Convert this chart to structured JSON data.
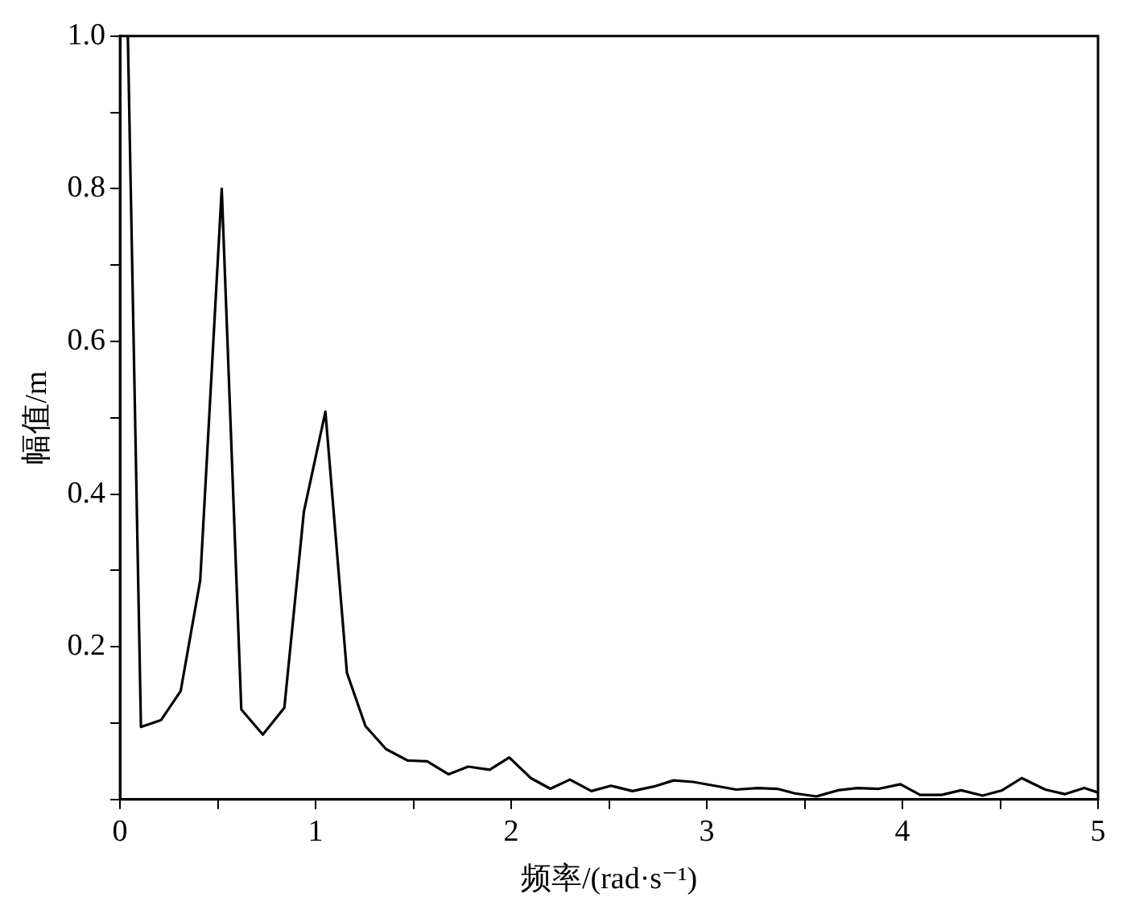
{
  "chart_data": {
    "type": "line",
    "xlabel": "频率/(rad·s⁻¹)",
    "ylabel": "幅值/m",
    "x": [
      0.04,
      0.107,
      0.21,
      0.31,
      0.41,
      0.52,
      0.62,
      0.73,
      0.84,
      0.94,
      1.05,
      1.16,
      1.255,
      1.36,
      1.47,
      1.57,
      1.68,
      1.78,
      1.89,
      1.99,
      2.1,
      2.2,
      2.3,
      2.41,
      2.51,
      2.62,
      2.73,
      2.83,
      2.93,
      3.04,
      3.15,
      3.26,
      3.36,
      3.45,
      3.56,
      3.67,
      3.77,
      3.88,
      3.99,
      4.09,
      4.2,
      4.3,
      4.41,
      4.51,
      4.61,
      4.73,
      4.83,
      4.93,
      5.0
    ],
    "series": [
      {
        "color": "#000000",
        "values": [
          1.0,
          0.095,
          0.104,
          0.142,
          0.287,
          0.8,
          0.118,
          0.085,
          0.12,
          0.377,
          0.508,
          0.166,
          0.096,
          0.066,
          0.051,
          0.05,
          0.033,
          0.043,
          0.039,
          0.055,
          0.028,
          0.014,
          0.026,
          0.011,
          0.018,
          0.011,
          0.017,
          0.025,
          0.023,
          0.018,
          0.013,
          0.015,
          0.014,
          0.008,
          0.004,
          0.012,
          0.015,
          0.014,
          0.02,
          0.006,
          0.006,
          0.012,
          0.005,
          0.012,
          0.028,
          0.013,
          0.007,
          0.015,
          0.009
        ]
      }
    ],
    "xlim": [
      0,
      5
    ],
    "xticks": [
      0,
      {
        "value": 0.5,
        "label": null
      },
      1,
      {
        "value": 1.5,
        "label": null
      },
      2,
      {
        "value": 2.5,
        "label": null
      },
      3,
      {
        "value": 3.5,
        "label": null
      },
      4,
      {
        "value": 4.5,
        "label": null
      },
      5
    ],
    "ylim": [
      0,
      1
    ],
    "yticks": [
      {
        "value": 0,
        "label": null
      },
      {
        "value": 0.1,
        "label": null
      },
      0.2,
      {
        "value": 0.3,
        "label": null
      },
      0.4,
      {
        "value": 0.5,
        "label": null
      },
      0.6,
      {
        "value": 0.7,
        "label": null
      },
      0.8,
      {
        "value": 0.9,
        "label": null
      },
      {
        "value": 1,
        "label": "1.0"
      }
    ],
    "grid": false,
    "legend": false,
    "marker": "none",
    "line_style": "solid"
  }
}
